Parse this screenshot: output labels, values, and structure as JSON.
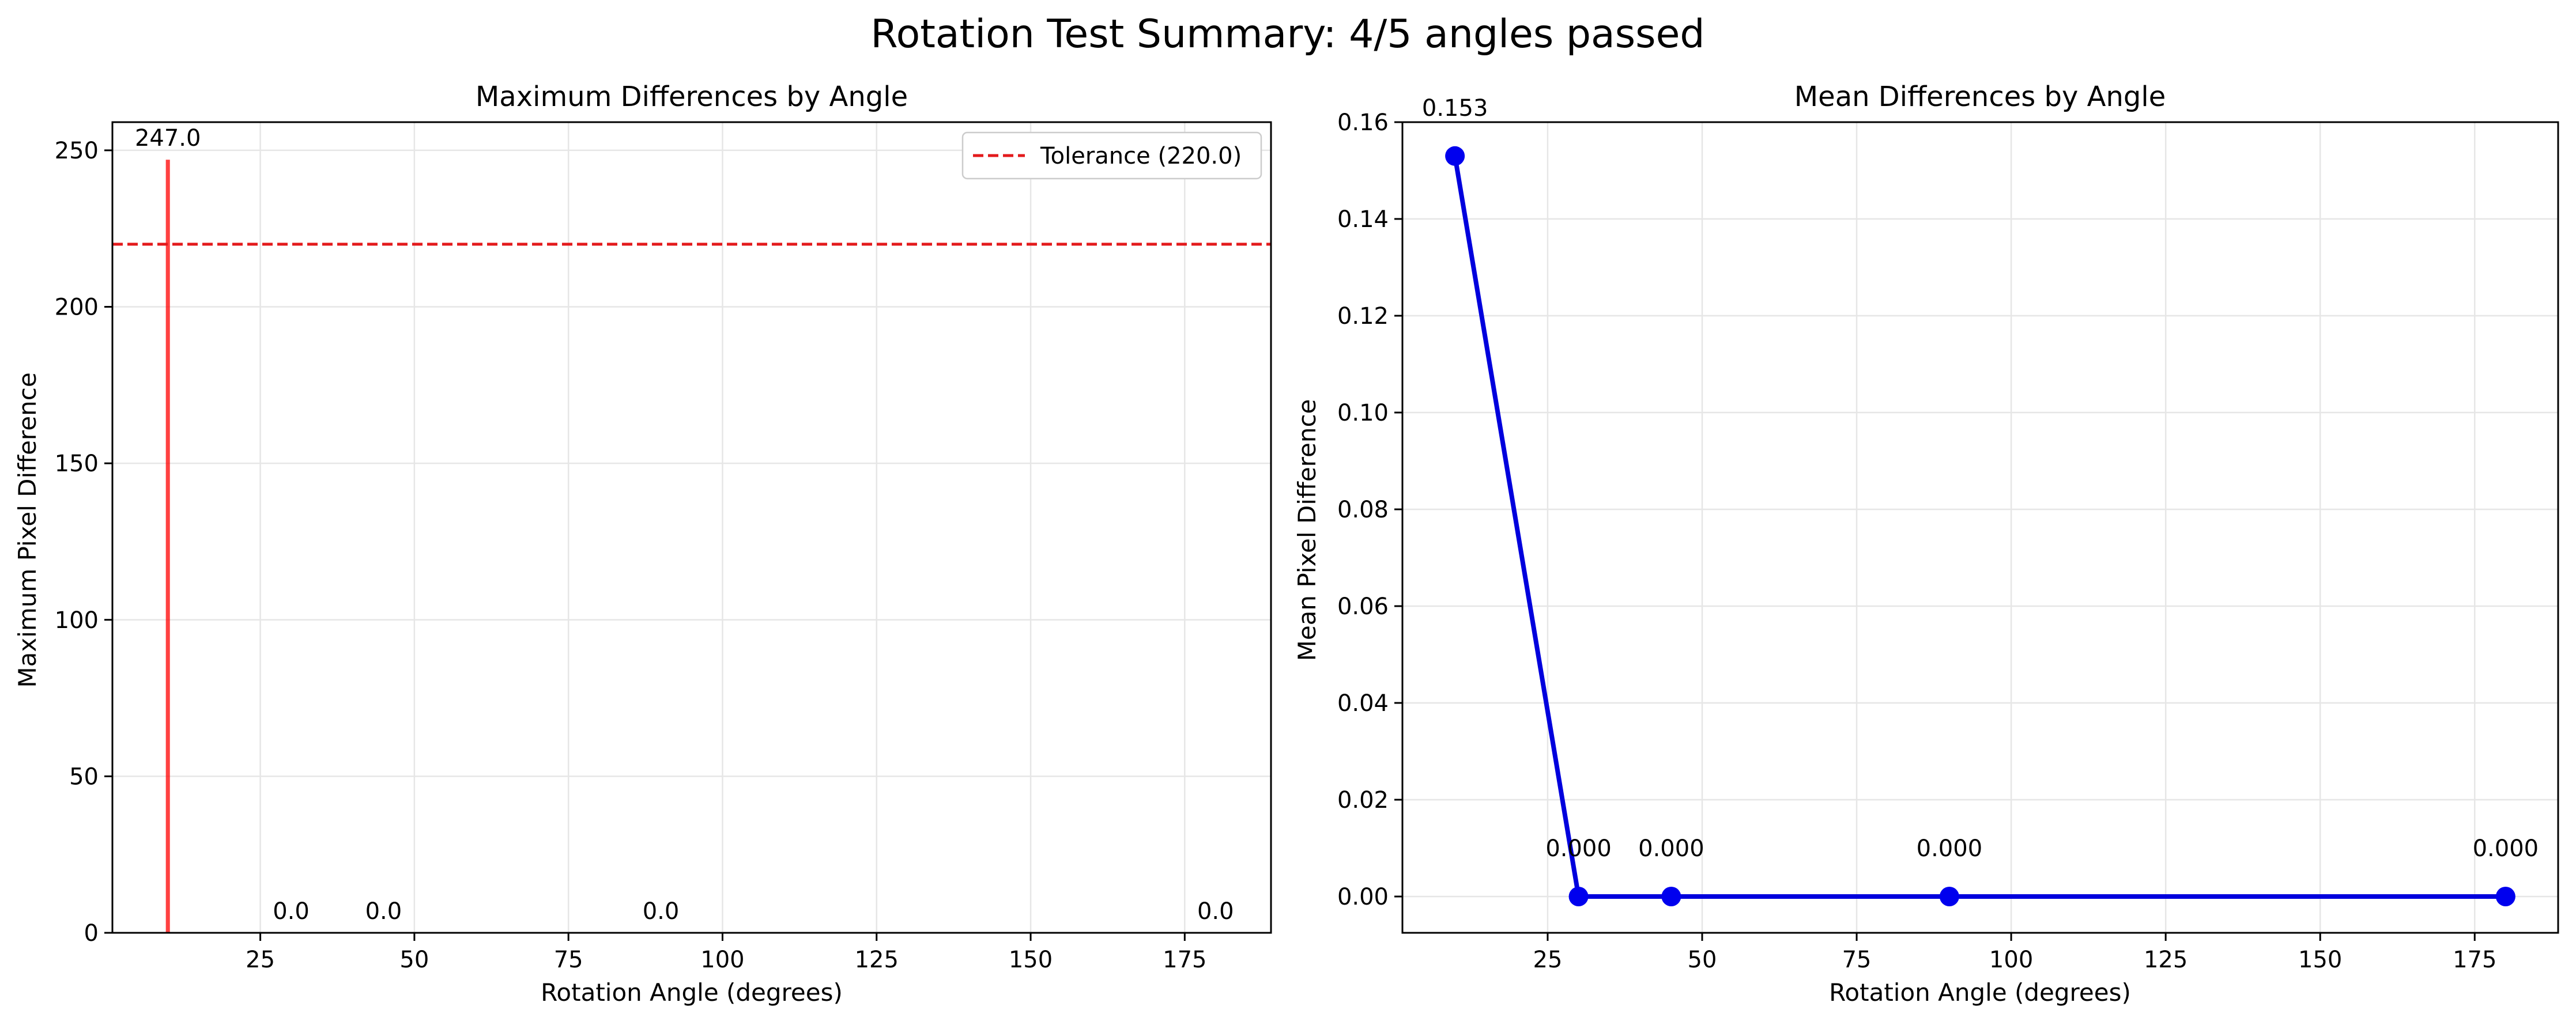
{
  "suptitle": "Rotation Test Summary: 4/5 angles passed",
  "colors": {
    "bar": "#ff0000",
    "tolerance": "#e31a1c",
    "line": "#0000dd",
    "marker": "#0000ee",
    "grid": "#e6e6e6"
  },
  "chart_data": [
    {
      "type": "bar",
      "title": "Maximum Differences by Angle",
      "xlabel": "Rotation Angle (degrees)",
      "ylabel": "Maximum Pixel Difference",
      "x": [
        10,
        30,
        45,
        90,
        180
      ],
      "values": [
        247.0,
        0.0,
        0.0,
        0.0,
        0.0
      ],
      "data_labels": [
        "247.0",
        "0.0",
        "0.0",
        "0.0",
        "0.0"
      ],
      "xlim": [
        1,
        189
      ],
      "ylim": [
        0,
        259
      ],
      "xticks": [
        25,
        50,
        75,
        100,
        125,
        150,
        175
      ],
      "yticks": [
        0,
        50,
        100,
        150,
        200,
        250
      ],
      "grid": true,
      "tolerance": {
        "value": 220.0,
        "label": "Tolerance (220.0)"
      },
      "legend": "top-right"
    },
    {
      "type": "line",
      "title": "Mean Differences by Angle",
      "xlabel": "Rotation Angle (degrees)",
      "ylabel": "Mean Pixel Difference",
      "x": [
        10,
        30,
        45,
        90,
        180
      ],
      "values": [
        0.153,
        0.0,
        0.0,
        0.0,
        0.0
      ],
      "data_labels": [
        "0.153",
        "0.000",
        "0.000",
        "0.000",
        "0.000"
      ],
      "xlim": [
        1.5,
        188.5
      ],
      "ylim": [
        -0.0075,
        0.16
      ],
      "xticks": [
        25,
        50,
        75,
        100,
        125,
        150,
        175
      ],
      "yticks": [
        0.0,
        0.02,
        0.04,
        0.06,
        0.08,
        0.1,
        0.12,
        0.14,
        0.16
      ],
      "ytick_labels": [
        "0.00",
        "0.02",
        "0.04",
        "0.06",
        "0.08",
        "0.10",
        "0.12",
        "0.14",
        "0.16"
      ],
      "grid": true
    }
  ]
}
